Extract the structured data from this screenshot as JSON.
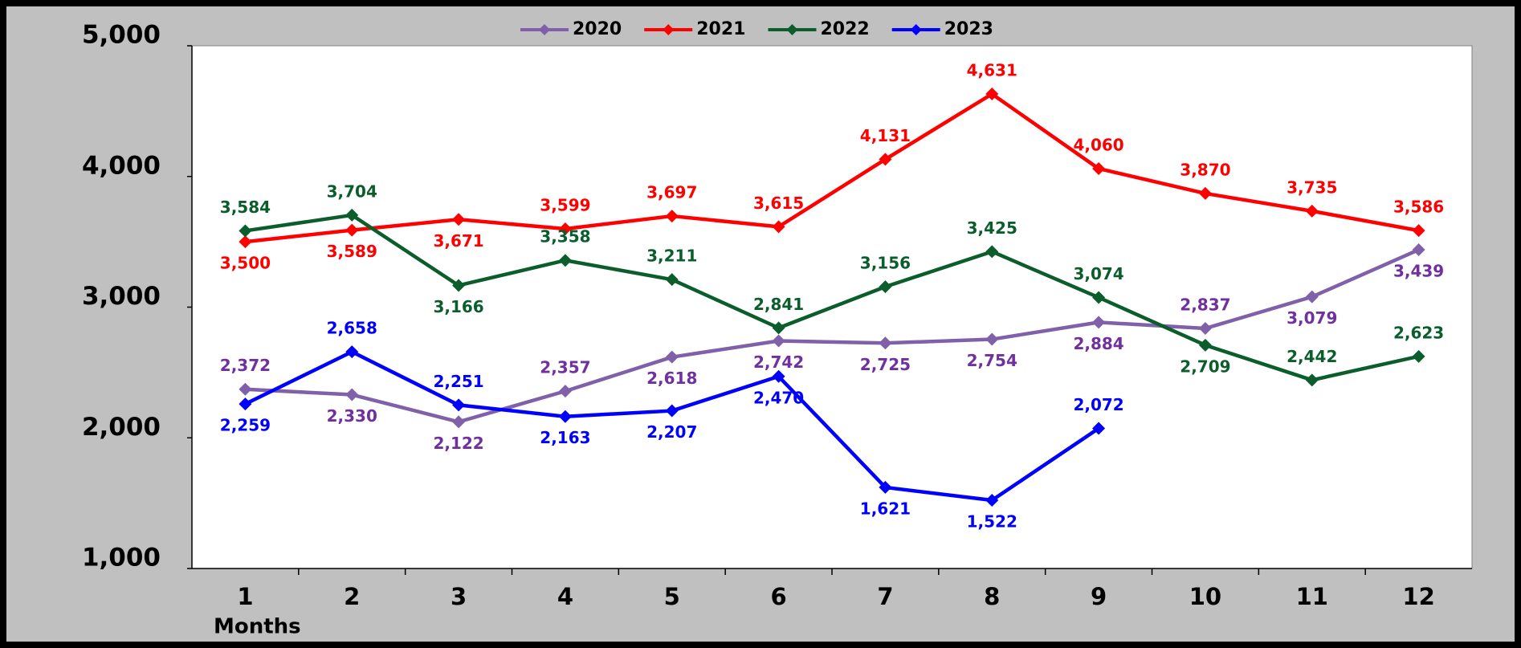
{
  "chart_data": {
    "type": "line",
    "x_label": "Months",
    "categories": [
      "1",
      "2",
      "3",
      "4",
      "5",
      "6",
      "7",
      "8",
      "9",
      "10",
      "11",
      "12"
    ],
    "ylim": [
      1000,
      5000
    ],
    "yticks": [
      {
        "value": 1000,
        "label": "1,000"
      },
      {
        "value": 2000,
        "label": "2,000"
      },
      {
        "value": 3000,
        "label": "3,000"
      },
      {
        "value": 4000,
        "label": "4,000"
      },
      {
        "value": 5000,
        "label": "5,000"
      }
    ],
    "legend": "top",
    "series": [
      {
        "name": "2020",
        "color": "#8060a8",
        "label_color": "#7030a0",
        "values": [
          2372,
          2330,
          2122,
          2357,
          2618,
          2742,
          2725,
          2754,
          2884,
          2837,
          3079,
          3439
        ],
        "value_labels": [
          "2,372",
          "2,330",
          "2,122",
          "2,357",
          "2,618",
          "2,742",
          "2,725",
          "2,754",
          "2,884",
          "2,837",
          "3,079",
          "3,439"
        ]
      },
      {
        "name": "2021",
        "color": "#ff0000",
        "label_color": "#ff0000",
        "values": [
          3500,
          3589,
          3671,
          3599,
          3697,
          3615,
          4131,
          4631,
          4060,
          3870,
          3735,
          3586
        ],
        "value_labels": [
          "3,500",
          "3,589",
          "3,671",
          "3,599",
          "3,697",
          "3,615",
          "4,131",
          "4,631",
          "4,060",
          "3,870",
          "3,735",
          "3,586"
        ]
      },
      {
        "name": "2022",
        "color": "#0b5e2c",
        "label_color": "#0b5e2c",
        "values": [
          3584,
          3704,
          3166,
          3358,
          3211,
          2841,
          3156,
          3425,
          3074,
          2709,
          2442,
          2623
        ],
        "value_labels": [
          "3,584",
          "3,704",
          "3,166",
          "3,358",
          "3,211",
          "2,841",
          "3,156",
          "3,425",
          "3,074",
          "2,709",
          "2,442",
          "2,623"
        ]
      },
      {
        "name": "2023",
        "color": "#0000ff",
        "label_color": "#0000ff",
        "values": [
          2259,
          2658,
          2251,
          2163,
          2207,
          2470,
          1621,
          1522,
          2072,
          null,
          null,
          null
        ],
        "value_labels": [
          "2,259",
          "2,658",
          "2,251",
          "2,163",
          "2,207",
          "2,470",
          "1,621",
          "1,522",
          "2,072",
          null,
          null,
          null
        ]
      }
    ]
  }
}
